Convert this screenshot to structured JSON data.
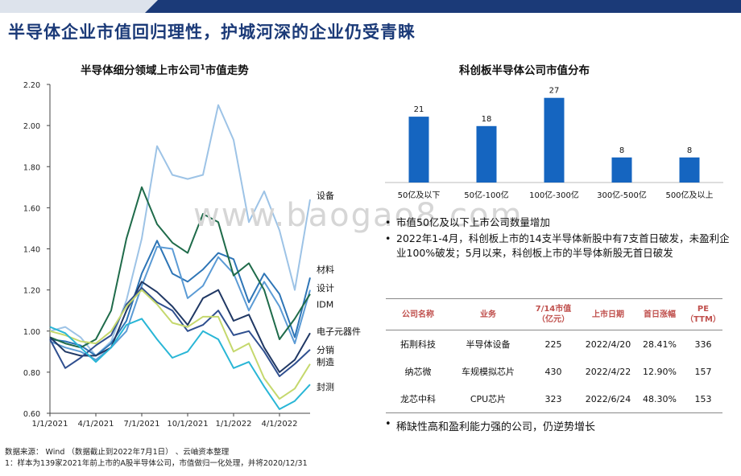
{
  "title": "半导体企业市值回归理性，护城河深的企业仍受青睐",
  "watermark": "www.baogao8.com",
  "left_chart_title": "半导体细分领域上市公司",
  "left_chart_title_sup": "1",
  "left_chart_title_tail": "市值走势",
  "right_chart_title": "科创板半导体公司市值分布",
  "chart_data": [
    {
      "type": "line",
      "x": [
        "2021-01",
        "2021-02",
        "2021-03",
        "2021-04",
        "2021-05",
        "2021-06",
        "2021-07",
        "2021-08",
        "2021-09",
        "2021-10",
        "2021-11",
        "2021-12",
        "2022-01",
        "2022-02",
        "2022-03",
        "2022-04",
        "2022-05",
        "2022-06"
      ],
      "x_tick_labels": [
        "1/1/2021",
        "4/1/2021",
        "7/1/2021",
        "10/1/2021",
        "1/1/2022",
        "4/1/2022"
      ],
      "ylim": [
        0.6,
        2.2
      ],
      "y_ticks": [
        "0.60",
        "0.80",
        "1.00",
        "1.20",
        "1.40",
        "1.60",
        "1.80",
        "2.00",
        "2.20"
      ],
      "grid": false,
      "series": [
        {
          "name": "设备",
          "color": "#9dc3e6",
          "values": [
            1.0,
            1.02,
            0.97,
            0.88,
            0.95,
            1.15,
            1.45,
            1.9,
            1.76,
            1.74,
            1.76,
            2.1,
            1.93,
            1.53,
            1.68,
            1.49,
            1.2,
            1.64
          ]
        },
        {
          "name": "材料",
          "color": "#2e75b6",
          "values": [
            0.96,
            0.95,
            0.93,
            0.88,
            0.94,
            1.05,
            1.28,
            1.44,
            1.28,
            1.24,
            1.3,
            1.38,
            1.35,
            1.14,
            1.28,
            1.18,
            0.97,
            1.26
          ]
        },
        {
          "name": "设计",
          "color": "#5b9bd5",
          "values": [
            0.95,
            0.92,
            0.9,
            0.86,
            0.92,
            1.0,
            1.22,
            1.41,
            1.4,
            1.16,
            1.22,
            1.36,
            1.28,
            1.1,
            1.24,
            1.12,
            0.94,
            1.2
          ]
        },
        {
          "name": "IDM",
          "color": "#1f6b4a",
          "values": [
            0.97,
            0.94,
            0.92,
            0.96,
            1.1,
            1.45,
            1.7,
            1.52,
            1.43,
            1.38,
            1.57,
            1.53,
            1.27,
            1.33,
            1.2,
            0.96,
            1.06,
            1.18
          ]
        },
        {
          "name": "电子元器件",
          "color": "#203864",
          "values": [
            0.97,
            0.9,
            0.88,
            0.88,
            0.92,
            1.1,
            1.24,
            1.19,
            1.12,
            1.03,
            1.16,
            1.2,
            1.05,
            1.08,
            0.92,
            0.8,
            0.86,
            0.99
          ]
        },
        {
          "name": "分销",
          "color": "#2f4f8f",
          "values": [
            0.96,
            0.82,
            0.87,
            0.93,
            0.98,
            1.13,
            1.21,
            1.14,
            1.1,
            1.0,
            1.03,
            1.1,
            0.98,
            1.0,
            0.9,
            0.78,
            0.84,
            0.91
          ]
        },
        {
          "name": "制造",
          "color": "#c5d86d",
          "values": [
            1.0,
            0.98,
            0.95,
            0.94,
            1.0,
            1.12,
            1.2,
            1.13,
            1.04,
            1.02,
            1.07,
            1.07,
            0.9,
            0.94,
            0.77,
            0.67,
            0.72,
            0.84
          ]
        },
        {
          "name": "封测",
          "color": "#29b6d6",
          "values": [
            1.02,
            0.99,
            0.92,
            0.85,
            0.92,
            1.03,
            1.06,
            0.96,
            0.87,
            0.9,
            1.0,
            0.96,
            0.82,
            0.85,
            0.73,
            0.62,
            0.66,
            0.74
          ]
        }
      ]
    },
    {
      "type": "bar",
      "categories": [
        "50亿及以下",
        "50亿-100亿",
        "100亿-300亿",
        "300亿-500亿",
        "500亿及以上"
      ],
      "values": [
        21,
        18,
        27,
        8,
        8
      ],
      "color": "#1565c0",
      "ylim": [
        0,
        30
      ]
    }
  ],
  "bullets": [
    "市值50亿及以下上市公司数量增加",
    "2022年1-4月，科创板上市的14支半导体新股中有7支首日破发，未盈利企业100%破发；5月以来，科创板上市的半导体新股无首日破发"
  ],
  "table": {
    "headers": [
      "公司名称",
      "业务",
      "7/14市值\n（亿元）",
      "上市日期",
      "首日涨幅",
      "PE（TTM）"
    ],
    "rows": [
      [
        "拓荆科技",
        "半导体设备",
        "225",
        "2022/4/20",
        "28.41%",
        "336"
      ],
      [
        "纳芯微",
        "车规模拟芯片",
        "430",
        "2022/4/22",
        "12.90%",
        "157"
      ],
      [
        "龙芯中科",
        "CPU芯片",
        "323",
        "2022/6/24",
        "48.30%",
        "153"
      ]
    ]
  },
  "bullet2": "稀缺性高和盈利能力强的公司，仍逆势增长",
  "source_note": "数据来源： Wind （数据截止到2022年7月1日） 、云岫资本整理",
  "footnote": "1：样本为139家2021年前上市的A股半导体公司，市值做归一化处理，并将2020/12/31"
}
